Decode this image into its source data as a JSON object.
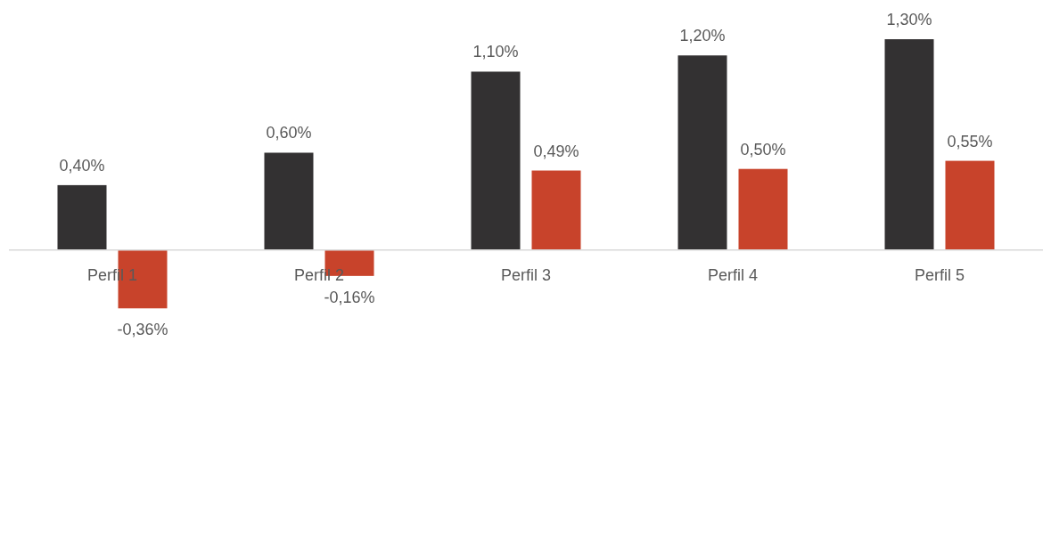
{
  "chart_data": {
    "type": "bar",
    "categories": [
      "Perfil 1",
      "Perfil 2",
      "Perfil 3",
      "Perfil 4",
      "Perfil 5"
    ],
    "series": [
      {
        "color": "#333132",
        "values": [
          0.4,
          0.6,
          1.1,
          1.2,
          1.3
        ],
        "value_labels": [
          "0,40%",
          "0,60%",
          "1,10%",
          "1,20%",
          "1,30%"
        ]
      },
      {
        "color": "#c8432b",
        "values": [
          -0.36,
          -0.16,
          0.49,
          0.5,
          0.55
        ],
        "value_labels": [
          "-0,36%",
          "-0,16%",
          "0,49%",
          "0,50%",
          "0,55%"
        ]
      }
    ]
  }
}
